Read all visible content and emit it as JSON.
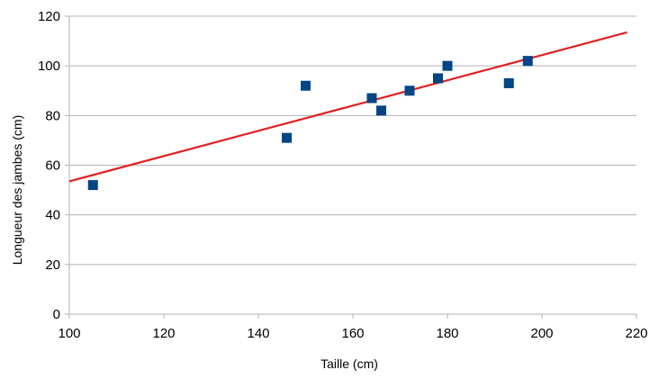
{
  "chart_data": {
    "type": "scatter",
    "xlabel": "Taille (cm)",
    "ylabel": "Longueur des jambes (cm)",
    "xlim": [
      100,
      220
    ],
    "ylim": [
      0,
      120
    ],
    "x_ticks": [
      100,
      120,
      140,
      160,
      180,
      200,
      220
    ],
    "y_ticks": [
      0,
      20,
      40,
      60,
      80,
      100,
      120
    ],
    "grid": "horizontal",
    "legend": "none",
    "points": [
      {
        "x": 105,
        "y": 52
      },
      {
        "x": 146,
        "y": 71
      },
      {
        "x": 150,
        "y": 92
      },
      {
        "x": 164,
        "y": 87
      },
      {
        "x": 166,
        "y": 82
      },
      {
        "x": 172,
        "y": 90
      },
      {
        "x": 178,
        "y": 95
      },
      {
        "x": 180,
        "y": 100
      },
      {
        "x": 193,
        "y": 93
      },
      {
        "x": 197,
        "y": 102
      }
    ],
    "trendline": {
      "x": [
        100,
        218
      ],
      "y": [
        53.5,
        113.5
      ]
    },
    "colors": {
      "points": "#004586",
      "trendline": "#e02020",
      "grid": "#b3b3b3",
      "axis": "#b3b3b3"
    }
  }
}
